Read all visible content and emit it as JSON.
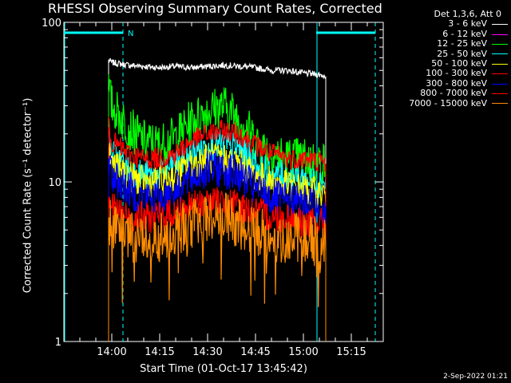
{
  "title": "RHESSI Observing Summary Count Rates, Corrected",
  "legend_header": "Det 1,3,6, Att 0",
  "datestamp": "2-Sep-2022 01:21",
  "chart_data": {
    "type": "line",
    "title": "RHESSI Observing Summary Count Rates, Corrected",
    "xlabel": "Start Time (01-Oct-17 13:45:42)",
    "ylabel": "Corrected Count Rate (s⁻¹ detector⁻¹)",
    "y_scale": "log",
    "ylim": [
      1,
      100
    ],
    "y_ticks": [
      1,
      10,
      100
    ],
    "y_tick_labels": [
      "1",
      "10",
      "100"
    ],
    "xlim_minutes": [
      -15,
      85
    ],
    "x_ticks_minutes": [
      0,
      15,
      30,
      45,
      60,
      75
    ],
    "x_tick_labels": [
      "14:00",
      "14:15",
      "14:30",
      "14:45",
      "15:00",
      "15:15"
    ],
    "x_unit": "time",
    "series": [
      {
        "name": "3 - 6 keV",
        "color": "#ffffff",
        "x": [
          -1,
          0,
          5,
          10,
          15,
          20,
          25,
          30,
          35,
          40,
          45,
          50,
          55,
          60,
          65,
          67
        ],
        "y": [
          58,
          56,
          54,
          53,
          52,
          53,
          52,
          53,
          54,
          53,
          52,
          50,
          50,
          48,
          47,
          46
        ]
      },
      {
        "name": "6 - 12 keV",
        "color": "#ff00ff",
        "x": [],
        "y": []
      },
      {
        "name": "12 - 25 keV",
        "color": "#00ff00",
        "x": [
          -1,
          0,
          5,
          10,
          15,
          20,
          25,
          30,
          35,
          40,
          45,
          50,
          55,
          60,
          65,
          67
        ],
        "y": [
          38,
          30,
          22,
          18,
          17,
          19,
          24,
          28,
          30,
          25,
          18,
          15,
          14,
          14,
          13,
          13
        ]
      },
      {
        "name": "25 - 50 keV",
        "color": "#00ffff",
        "x": [
          -1,
          0,
          5,
          10,
          15,
          20,
          25,
          30,
          35,
          40,
          45,
          50,
          55,
          60,
          65,
          67
        ],
        "y": [
          20,
          15,
          12,
          11,
          11,
          13,
          15,
          17,
          17,
          16,
          13,
          11,
          11,
          10.5,
          10,
          10
        ]
      },
      {
        "name": "50 - 100 keV",
        "color": "#ffff00",
        "x": [
          -1,
          0,
          5,
          10,
          15,
          20,
          25,
          30,
          35,
          40,
          45,
          50,
          55,
          60,
          65,
          67
        ],
        "y": [
          16,
          13,
          11,
          10,
          10,
          11,
          13,
          14,
          14,
          13,
          11,
          10,
          9.5,
          9,
          8.5,
          8.5
        ]
      },
      {
        "name": "100 - 300 keV",
        "color": "#ff0000",
        "x": [
          -1,
          0,
          5,
          10,
          15,
          20,
          25,
          30,
          35,
          40,
          45,
          50,
          55,
          60,
          65,
          67
        ],
        "y": [
          22,
          18,
          15,
          14,
          14,
          15,
          18,
          20,
          21,
          20,
          17,
          15,
          14,
          14,
          13.5,
          13
        ]
      },
      {
        "name": "300 - 800 keV",
        "color": "#0000ff",
        "x": [
          -1,
          0,
          5,
          10,
          15,
          20,
          25,
          30,
          35,
          40,
          45,
          50,
          55,
          60,
          65,
          67
        ],
        "y": [
          14,
          11,
          9,
          8,
          8,
          9,
          10.5,
          12,
          12,
          11,
          9,
          8,
          7.5,
          7.5,
          7,
          7
        ]
      },
      {
        "name": "800 - 7000 keV",
        "color": "#ff0000",
        "x": [
          -1,
          0,
          5,
          10,
          15,
          20,
          25,
          30,
          35,
          40,
          45,
          50,
          55,
          60,
          65,
          67
        ],
        "y": [
          8,
          7,
          6,
          6,
          6,
          6.5,
          7,
          7.5,
          7.5,
          7,
          6.5,
          6,
          6,
          5.5,
          5.5,
          5.5
        ]
      },
      {
        "name": "7000 - 15000 keV",
        "color": "#ff8c00",
        "x": [
          -1,
          0,
          5,
          10,
          15,
          20,
          25,
          30,
          35,
          40,
          45,
          50,
          55,
          60,
          65,
          67
        ],
        "y": [
          6,
          5,
          4.5,
          4.5,
          4.5,
          5,
          5.5,
          6,
          6,
          5.5,
          5,
          4.5,
          4.5,
          4.5,
          4.2,
          4.2
        ]
      }
    ],
    "annotations": [
      {
        "type": "night",
        "label": "N",
        "x_start_minutes": -15,
        "x_end_minutes": 3.5,
        "color": "#00ffff"
      },
      {
        "type": "night",
        "label": "",
        "x_start_minutes": 64,
        "x_end_minutes": 82.5,
        "color": "#00ffff"
      }
    ],
    "grid": false
  }
}
